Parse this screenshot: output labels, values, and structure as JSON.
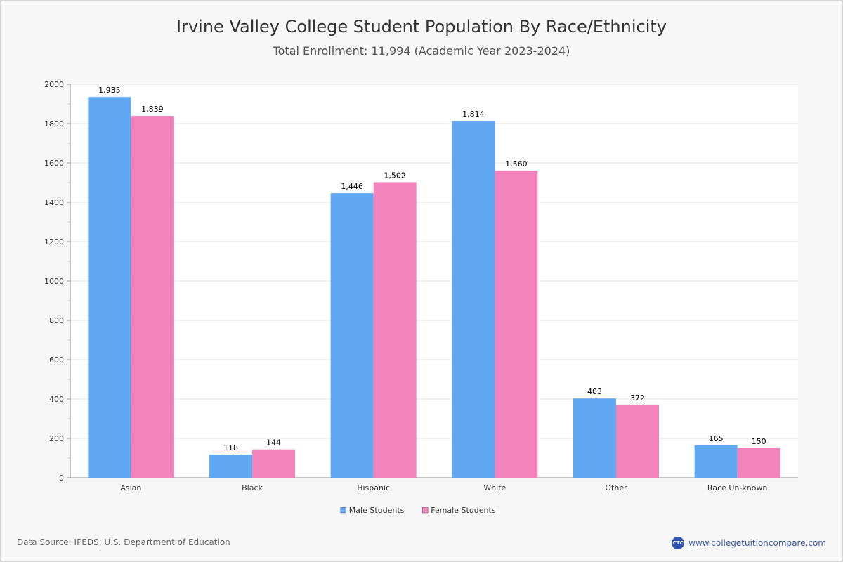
{
  "chart_data": {
    "type": "bar",
    "title": "Irvine Valley College Student Population By Race/Ethnicity",
    "subtitle": "Total Enrollment: 11,994 (Academic Year 2023-2024)",
    "categories": [
      "Asian",
      "Black",
      "Hispanic",
      "White",
      "Other",
      "Race Un-known"
    ],
    "series": [
      {
        "name": "Male Students",
        "color": "#61a8f3",
        "values": [
          1935,
          118,
          1446,
          1814,
          403,
          165
        ],
        "labels": [
          "1,935",
          "118",
          "1,446",
          "1,814",
          "403",
          "165"
        ]
      },
      {
        "name": "Female Students",
        "color": "#f283bc",
        "values": [
          1839,
          144,
          1502,
          1560,
          372,
          150
        ],
        "labels": [
          "1,839",
          "144",
          "1,502",
          "1,560",
          "372",
          "150"
        ]
      }
    ],
    "ylim": [
      0,
      2000
    ],
    "yticks": [
      0,
      200,
      400,
      600,
      800,
      1000,
      1200,
      1400,
      1600,
      1800,
      2000
    ],
    "xlabel": "",
    "ylabel": "",
    "grid": true,
    "legend": "bottom-center"
  },
  "footer": {
    "source": "Data Source: IPEDS, U.S. Department of Education",
    "site": "www.collegetuitioncompare.com",
    "logo_text": "CTC"
  }
}
